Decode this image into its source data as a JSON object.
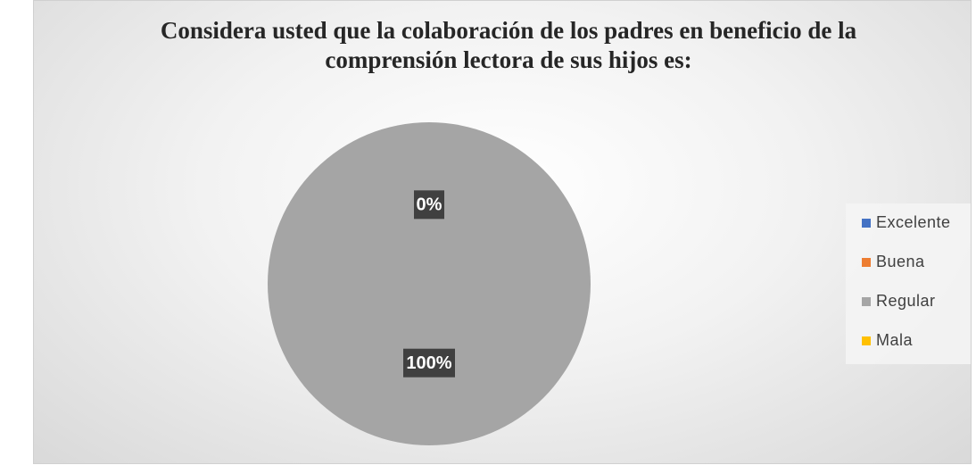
{
  "chart_data": {
    "type": "pie",
    "title": "Considera usted que la colaboración de los padres en beneficio de la comprensión lectora de sus hijos es:",
    "categories": [
      "Excelente",
      "Buena",
      "Regular",
      "Mala"
    ],
    "values": [
      0,
      0,
      100,
      0
    ],
    "value_labels": [
      "0%",
      "0%",
      "100%",
      "0%"
    ],
    "colors": [
      "#4472c4",
      "#ed7d31",
      "#a5a5a5",
      "#ffc000"
    ],
    "legend": "right"
  }
}
